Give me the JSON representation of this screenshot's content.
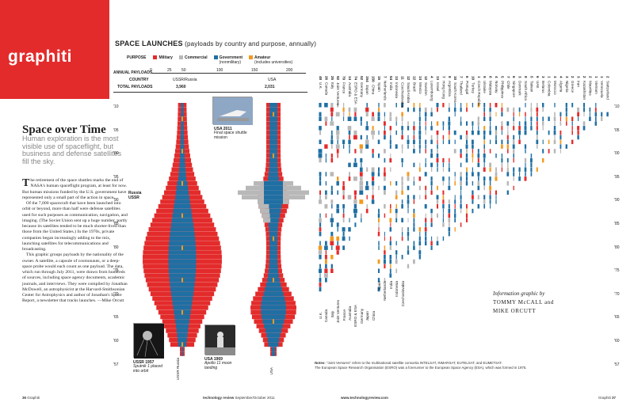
{
  "brand": {
    "logo": "graphiti"
  },
  "section": {
    "title": "SPACE LAUNCHES",
    "subtitle": "(payloads by country and purpose, annually)"
  },
  "legend": {
    "purpose_label": "PURPOSE",
    "items": [
      {
        "name": "Military",
        "note": "",
        "color": "#e32b2b"
      },
      {
        "name": "Commercial",
        "note": "",
        "color": "#b8b8b8"
      },
      {
        "name": "Government",
        "note": "(nonmilitary)",
        "color": "#1f6fa3"
      },
      {
        "name": "Amateur",
        "note": "(includes universities)",
        "color": "#f29a1d"
      }
    ]
  },
  "scale": {
    "label": "ANNUAL PAYLOADS",
    "ticks": [
      "0",
      "25",
      "50",
      "100",
      "150",
      "200"
    ]
  },
  "country_row": {
    "label": "COUNTRY",
    "left": "USSR/Russia",
    "right": "USA"
  },
  "totals_row": {
    "label": "TOTAL PAYLOADS",
    "left": "3,960",
    "right": "2,031"
  },
  "article": {
    "headline": "Space over Time",
    "deck": "Human exploration is the most visible use of spaceflight, but business and defense satellites fill the sky.",
    "drop": "T",
    "paragraphs": [
      "he retirement of the space shuttles marks the end of NASA's human spaceflight program, at least for now. But human missions funded by the U.S. government have represented only a small part of the action in space.",
      "Of the 7,000 spacecraft that have been launched into orbit or beyond, more than half were defense satellites used for such purposes as communication, navigation, and imaging. (The Soviet Union sent up a huge number, partly because its satellites tended to be much shorter-lived than those from the United States.) In the 1970s, private companies began increasingly adding to the mix, launching satellites for telecommunications and broadcasting.",
      "This graphic groups payloads by the nationality of the owner. A satellite, a capsule of cosmonauts, or a deep-space probe would each count as one payload. The data, which run through July 2011, were drawn from hundreds of sources, including space agency documents, academic journals, and interviews. They were compiled by Jonathan McDowell, an astrophysicist at the Harvard-Smithsonian Center for Astrophysics and author of Jonathan's Space Report, a newsletter that tracks launches. —Mike Orcutt"
    ]
  },
  "years": [
    "'10",
    "'05",
    "'00",
    "'95",
    "'90",
    "'85",
    "'80",
    "'75",
    "'70",
    "'65",
    "'60",
    "'57"
  ],
  "chart_labels": {
    "russia": "Russia",
    "ussr": "USSR",
    "ussr_russia": "USSR Russia",
    "usa": "USA"
  },
  "photos": {
    "shuttle": {
      "title": "USA 2011",
      "caption": "Final space shuttle mission"
    },
    "sputnik": {
      "title": "USSR 1957",
      "caption": "Sputnik 1 placed into orbit"
    },
    "apollo": {
      "title": "USA 1969",
      "caption": "Apollo 11 moon landing"
    }
  },
  "countries": [
    {
      "n": "48",
      "c": "U.K."
    },
    {
      "n": "26",
      "c": "Canada"
    },
    {
      "n": "25",
      "c": "Italy"
    },
    {
      "n": "92",
      "c": "Joint Ventures"
    },
    {
      "n": "79",
      "c": "France"
    },
    {
      "n": "14",
      "c": "Australia"
    },
    {
      "n": "74",
      "c": "ESRO & ESA"
    },
    {
      "n": "52",
      "c": "Germany"
    },
    {
      "n": "154",
      "c": "Japan"
    },
    {
      "n": "150",
      "c": "China"
    },
    {
      "n": "15",
      "c": "Spain"
    },
    {
      "n": "7",
      "c": "Netherlands"
    },
    {
      "n": "54",
      "c": "India"
    },
    {
      "n": "13",
      "c": "Indonesia"
    },
    {
      "n": "11",
      "c": "Czechoslovakia"
    },
    {
      "n": "12",
      "c": "Saudi Arabia"
    },
    {
      "n": "12",
      "c": "Brazil"
    },
    {
      "n": "14",
      "c": "Mexico"
    },
    {
      "n": "12",
      "c": "Sweden"
    },
    {
      "n": "4",
      "c": "Luxembourg"
    },
    {
      "n": "13",
      "c": "Israel"
    },
    {
      "n": "7",
      "c": "Hong Kong"
    },
    {
      "n": "8",
      "c": "Argentina"
    },
    {
      "n": "10",
      "c": "South Korea"
    },
    {
      "n": "7",
      "c": "Thailand"
    },
    {
      "n": "6",
      "c": "Portugal"
    },
    {
      "n": "10",
      "c": "Turkey"
    },
    {
      "n": "1",
      "c": "Czech Republic"
    },
    {
      "n": "9",
      "c": "Ukraine"
    },
    {
      "n": "6",
      "c": "Malaysia"
    },
    {
      "n": "4",
      "c": "Norway"
    },
    {
      "n": "5",
      "c": "Philippines"
    },
    {
      "n": "7",
      "c": "Chile"
    },
    {
      "n": "6",
      "c": "Singapore"
    },
    {
      "n": "3",
      "c": "Denmark"
    },
    {
      "n": "8",
      "c": "South Africa"
    },
    {
      "n": "5",
      "c": "Taiwan"
    },
    {
      "n": "6",
      "c": "UAE"
    },
    {
      "n": "3",
      "c": "Belarus"
    },
    {
      "n": "1",
      "c": "Colombia"
    },
    {
      "n": "3",
      "c": "Morocco"
    },
    {
      "n": "4",
      "c": "Algeria"
    },
    {
      "n": "3",
      "c": "Nigeria"
    },
    {
      "n": "2",
      "c": "Greece"
    },
    {
      "n": "3",
      "c": "Iran"
    },
    {
      "n": "2",
      "c": "Kazakhstan"
    },
    {
      "n": "2",
      "c": "Mauritius"
    },
    {
      "n": "1",
      "c": "Vietnam"
    },
    {
      "n": "1",
      "c": "Venezuela"
    },
    {
      "n": "2",
      "c": "Switzerland"
    }
  ],
  "bottom_labels": [
    "U.K.",
    "Canada",
    "Italy",
    "Joint Ventures",
    "France",
    "Australia",
    "ESRO & ESA",
    "Germany",
    "Japan",
    "China"
  ],
  "mid_labels": [
    "Spain",
    "Netherlands",
    "India",
    "Indonesia",
    "Czechoslovakia"
  ],
  "credit": {
    "line": "Information graphic by",
    "a1": "TOMMY McCALL and",
    "a2": "MIKE ORCUTT"
  },
  "notes": {
    "label": "Notes:",
    "line1": "\"Joint Ventures\" refers to the multinational satellite consortia INTELSAT, INMARSAT, EUTELSAT, and EUMETSAT.",
    "line2": "The European Space Research Organisation (ESRO) was a forerunner to the European Space Agency (ESA), which was formed in 1975."
  },
  "footer": {
    "left_page": "36",
    "left_section": "Graphiti",
    "mag": "technology review",
    "date": "September/October 2011",
    "url": "www.technologyreview.com",
    "right_section": "Graphiti",
    "right_page": "37"
  }
}
